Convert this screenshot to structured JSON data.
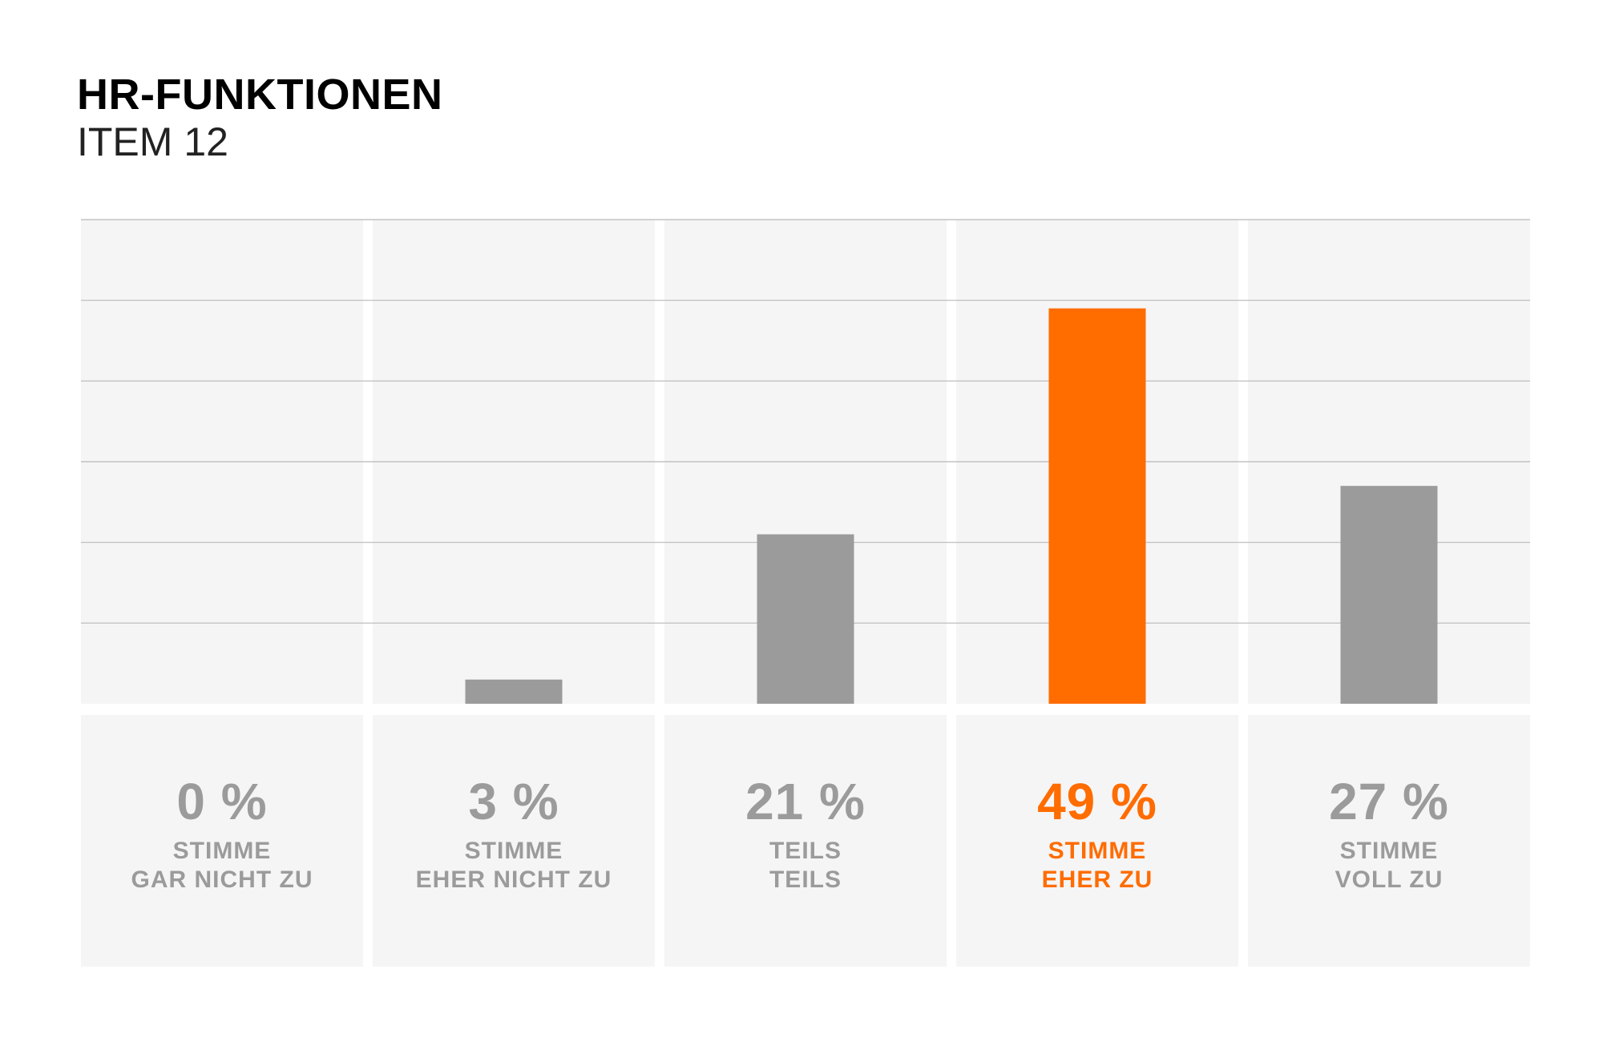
{
  "header": {
    "title": "HR-FUNKTIONEN",
    "subtitle": "ITEM 12"
  },
  "chart_data": {
    "type": "bar",
    "title": "HR-FUNKTIONEN",
    "subtitle": "ITEM 12",
    "categories": [
      [
        "STIMME",
        "GAR NICHT ZU"
      ],
      [
        "STIMME",
        "EHER NICHT ZU"
      ],
      [
        "TEILS",
        "TEILS"
      ],
      [
        "STIMME",
        "EHER ZU"
      ],
      [
        "STIMME",
        "VOLL ZU"
      ]
    ],
    "values": [
      0,
      3,
      21,
      49,
      27
    ],
    "value_labels": [
      "0 %",
      "3 %",
      "21 %",
      "49 %",
      "27 %"
    ],
    "unit": "%",
    "ylim": [
      0,
      60
    ],
    "grid": true,
    "highlight_index": 3,
    "colors": {
      "bar": "#9b9b9b",
      "highlight": "#ff6c00",
      "panel": "#f5f5f5",
      "grid": "#b8b8b8"
    }
  }
}
